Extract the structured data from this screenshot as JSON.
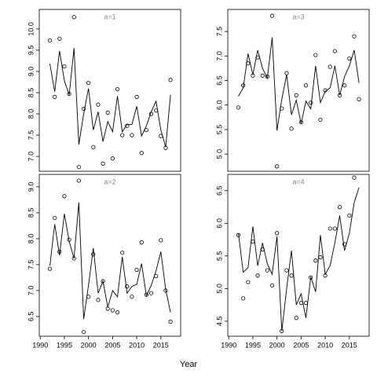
{
  "xlabel": "Year",
  "chart_data": [
    {
      "type": "line",
      "title": "a=1",
      "x": [
        1992,
        1993,
        1994,
        1995,
        1996,
        1997,
        1998,
        1999,
        2000,
        2001,
        2002,
        2003,
        2004,
        2005,
        2006,
        2007,
        2008,
        2009,
        2010,
        2011,
        2012,
        2013,
        2014,
        2015,
        2016,
        2017
      ],
      "series": [
        {
          "mode": "markers",
          "color": "#000000",
          "values": [
            9.73,
            8.4,
            9.77,
            9.12,
            8.47,
            10.28,
            6.75,
            8.12,
            8.73,
            7.22,
            8.22,
            6.83,
            8.03,
            6.95,
            8.58,
            7.5,
            7.72,
            7.5,
            8.4,
            7.08,
            7.62,
            8.0,
            8.08,
            7.48,
            7.2,
            8.8
          ]
        },
        {
          "mode": "lines",
          "color": "#000000",
          "values": [
            9.18,
            8.52,
            9.48,
            8.78,
            8.45,
            9.55,
            7.28,
            8.0,
            8.6,
            7.62,
            8.05,
            7.35,
            7.82,
            7.58,
            8.42,
            7.58,
            7.75,
            7.75,
            8.18,
            7.48,
            7.72,
            8.05,
            8.3,
            7.62,
            7.22,
            8.45
          ]
        }
      ],
      "xlim": [
        1989.8,
        2019.1
      ],
      "ylim": [
        6.65,
        10.46
      ],
      "yticks": [
        {
          "value": 7,
          "label": "7.0"
        },
        7.5,
        {
          "value": 8,
          "label": "8.0"
        },
        8.5,
        {
          "value": 9,
          "label": "9.0"
        },
        9.5,
        {
          "value": 10,
          "label": "10.0"
        }
      ]
    },
    {
      "type": "line",
      "title": "a=3",
      "x": [
        1992,
        1993,
        1994,
        1995,
        1996,
        1997,
        1998,
        1999,
        2000,
        2001,
        2002,
        2003,
        2004,
        2005,
        2006,
        2007,
        2008,
        2009,
        2010,
        2011,
        2012,
        2013,
        2014,
        2015,
        2016,
        2017
      ],
      "series": [
        {
          "mode": "markers",
          "color": "#000000",
          "values": [
            5.95,
            6.4,
            6.85,
            6.6,
            6.97,
            6.6,
            6.58,
            7.82,
            4.75,
            5.93,
            6.65,
            5.52,
            6.2,
            5.65,
            6.4,
            6.05,
            7.02,
            5.7,
            6.3,
            6.78,
            7.1,
            6.2,
            6.4,
            6.95,
            7.4,
            6.12
          ]
        },
        {
          "mode": "lines",
          "color": "#000000",
          "values": [
            6.18,
            6.35,
            7.05,
            6.62,
            7.12,
            6.75,
            6.55,
            7.38,
            5.48,
            6.12,
            6.62,
            5.8,
            6.1,
            5.62,
            6.08,
            5.92,
            6.8,
            6.05,
            6.28,
            6.35,
            6.8,
            6.2,
            6.58,
            6.8,
            7.12,
            6.45
          ]
        }
      ],
      "xlim": [
        1989.8,
        2019.1
      ],
      "ylim": [
        4.65,
        7.95
      ],
      "yticks": [
        {
          "value": 5,
          "label": "5.0"
        },
        5.5,
        {
          "value": 6,
          "label": "6.0"
        },
        6.5,
        {
          "value": 7,
          "label": "7.0"
        },
        7.5
      ]
    },
    {
      "type": "line",
      "title": "a=2",
      "x": [
        1992,
        1993,
        1994,
        1995,
        1996,
        1997,
        1998,
        1999,
        2000,
        2001,
        2002,
        2003,
        2004,
        2005,
        2006,
        2007,
        2008,
        2009,
        2010,
        2011,
        2012,
        2013,
        2014,
        2015,
        2016,
        2017
      ],
      "series": [
        {
          "mode": "markers",
          "color": "#000000",
          "values": [
            7.42,
            8.4,
            7.75,
            8.82,
            7.98,
            7.62,
            9.12,
            6.2,
            6.88,
            7.7,
            6.82,
            7.18,
            6.65,
            6.62,
            6.58,
            7.73,
            7.08,
            6.88,
            7.4,
            7.93,
            6.92,
            6.95,
            7.28,
            7.97,
            7.0,
            6.4
          ]
        },
        {
          "mode": "lines",
          "color": "#000000",
          "values": [
            7.48,
            8.28,
            7.68,
            8.48,
            7.95,
            7.62,
            8.7,
            6.45,
            7.1,
            7.82,
            6.95,
            7.18,
            6.68,
            7.0,
            6.88,
            7.65,
            6.95,
            7.08,
            7.12,
            7.52,
            6.9,
            7.1,
            7.38,
            7.75,
            7.02,
            6.58
          ]
        }
      ],
      "xlim": [
        1989.8,
        2019.1
      ],
      "ylim": [
        6.12,
        9.24
      ],
      "xticks": [
        1990,
        1995,
        2000,
        2005,
        2010,
        2015
      ],
      "yticks": [
        6.5,
        {
          "value": 7,
          "label": "7.0"
        },
        7.5,
        {
          "value": 8,
          "label": "8.0"
        },
        8.5,
        {
          "value": 9,
          "label": "9.0"
        }
      ]
    },
    {
      "type": "line",
      "title": "a=4",
      "x": [
        1992,
        1993,
        1994,
        1995,
        1996,
        1997,
        1998,
        1999,
        2000,
        2001,
        2002,
        2003,
        2004,
        2005,
        2006,
        2007,
        2008,
        2009,
        2010,
        2011,
        2012,
        2013,
        2014,
        2015,
        2016,
        2017
      ],
      "series": [
        {
          "mode": "markers",
          "color": "#000000",
          "values": [
            5.82,
            4.85,
            5.1,
            5.72,
            5.2,
            5.6,
            5.28,
            5.05,
            5.85,
            4.35,
            5.28,
            5.2,
            4.55,
            4.78,
            4.78,
            5.17,
            5.43,
            5.48,
            5.2,
            5.92,
            5.92,
            6.25,
            5.68,
            6.12,
            6.7,
            null
          ]
        },
        {
          "mode": "lines",
          "color": "#000000",
          "values": [
            5.85,
            5.25,
            5.32,
            5.95,
            5.35,
            5.7,
            5.38,
            5.22,
            5.8,
            4.35,
            5.0,
            5.58,
            4.75,
            4.92,
            4.55,
            5.18,
            4.95,
            5.82,
            5.22,
            5.35,
            5.7,
            6.12,
            5.58,
            5.85,
            6.32,
            6.55
          ]
        }
      ],
      "xlim": [
        1989.8,
        2019.1
      ],
      "ylim": [
        4.27,
        6.75
      ],
      "xticks": [
        1990,
        1995,
        2000,
        2005,
        2010,
        2015
      ],
      "yticks": [
        4.5,
        {
          "value": 5,
          "label": "5.0"
        },
        5.5,
        {
          "value": 6,
          "label": "6.0"
        },
        6.5
      ]
    }
  ]
}
